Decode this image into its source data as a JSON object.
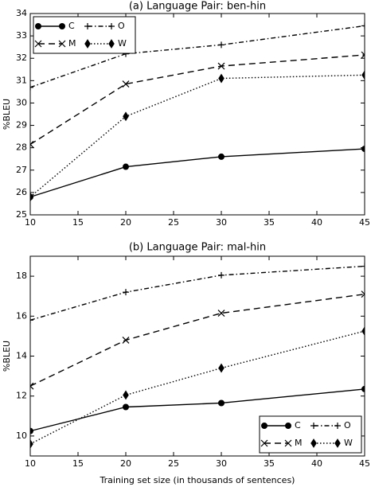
{
  "chart_data": [
    {
      "type": "line",
      "title": "(a) Language Pair: ben-hin",
      "ylabel": "%BLEU",
      "x": [
        10,
        20,
        30,
        45
      ],
      "xlim": [
        10,
        45
      ],
      "xticks": [
        10,
        15,
        20,
        25,
        30,
        35,
        40,
        45
      ],
      "ylim": [
        25,
        34
      ],
      "yticks": [
        25,
        26,
        27,
        28,
        29,
        30,
        31,
        32,
        33,
        34
      ],
      "legend": "upper left",
      "series": [
        {
          "name": "C",
          "color": "#000000",
          "linestyle": "solid",
          "marker": "circle",
          "values": [
            25.8,
            27.15,
            27.6,
            27.95
          ]
        },
        {
          "name": "M",
          "color": "#000000",
          "linestyle": "dashed",
          "marker": "x",
          "values": [
            28.15,
            30.85,
            31.65,
            32.15
          ]
        },
        {
          "name": "O",
          "color": "#000000",
          "linestyle": "dashdot",
          "marker": "plus",
          "values": [
            30.7,
            32.2,
            32.6,
            33.45
          ]
        },
        {
          "name": "W",
          "color": "#000000",
          "linestyle": "dotted",
          "marker": "diamond",
          "values": [
            25.8,
            29.4,
            31.1,
            31.25
          ]
        }
      ]
    },
    {
      "type": "line",
      "title": "(b) Language Pair: mal-hin",
      "ylabel": "%BLEU",
      "xlabel": "Training set size (in thousands of sentences)",
      "x": [
        10,
        20,
        30,
        45
      ],
      "xlim": [
        10,
        45
      ],
      "xticks": [
        10,
        15,
        20,
        25,
        30,
        35,
        40,
        45
      ],
      "ylim": [
        9,
        19
      ],
      "yticks": [
        10,
        12,
        14,
        16,
        18
      ],
      "legend": "lower right",
      "series": [
        {
          "name": "C",
          "color": "#000000",
          "linestyle": "solid",
          "marker": "circle",
          "values": [
            10.25,
            11.45,
            11.65,
            12.35
          ]
        },
        {
          "name": "M",
          "color": "#000000",
          "linestyle": "dashed",
          "marker": "x",
          "values": [
            12.5,
            14.8,
            16.15,
            17.1
          ]
        },
        {
          "name": "O",
          "color": "#000000",
          "linestyle": "dashdot",
          "marker": "plus",
          "values": [
            15.8,
            17.2,
            18.05,
            18.5
          ]
        },
        {
          "name": "W",
          "color": "#000000",
          "linestyle": "dotted",
          "marker": "diamond",
          "values": [
            9.6,
            12.05,
            13.4,
            15.25
          ]
        }
      ]
    }
  ]
}
